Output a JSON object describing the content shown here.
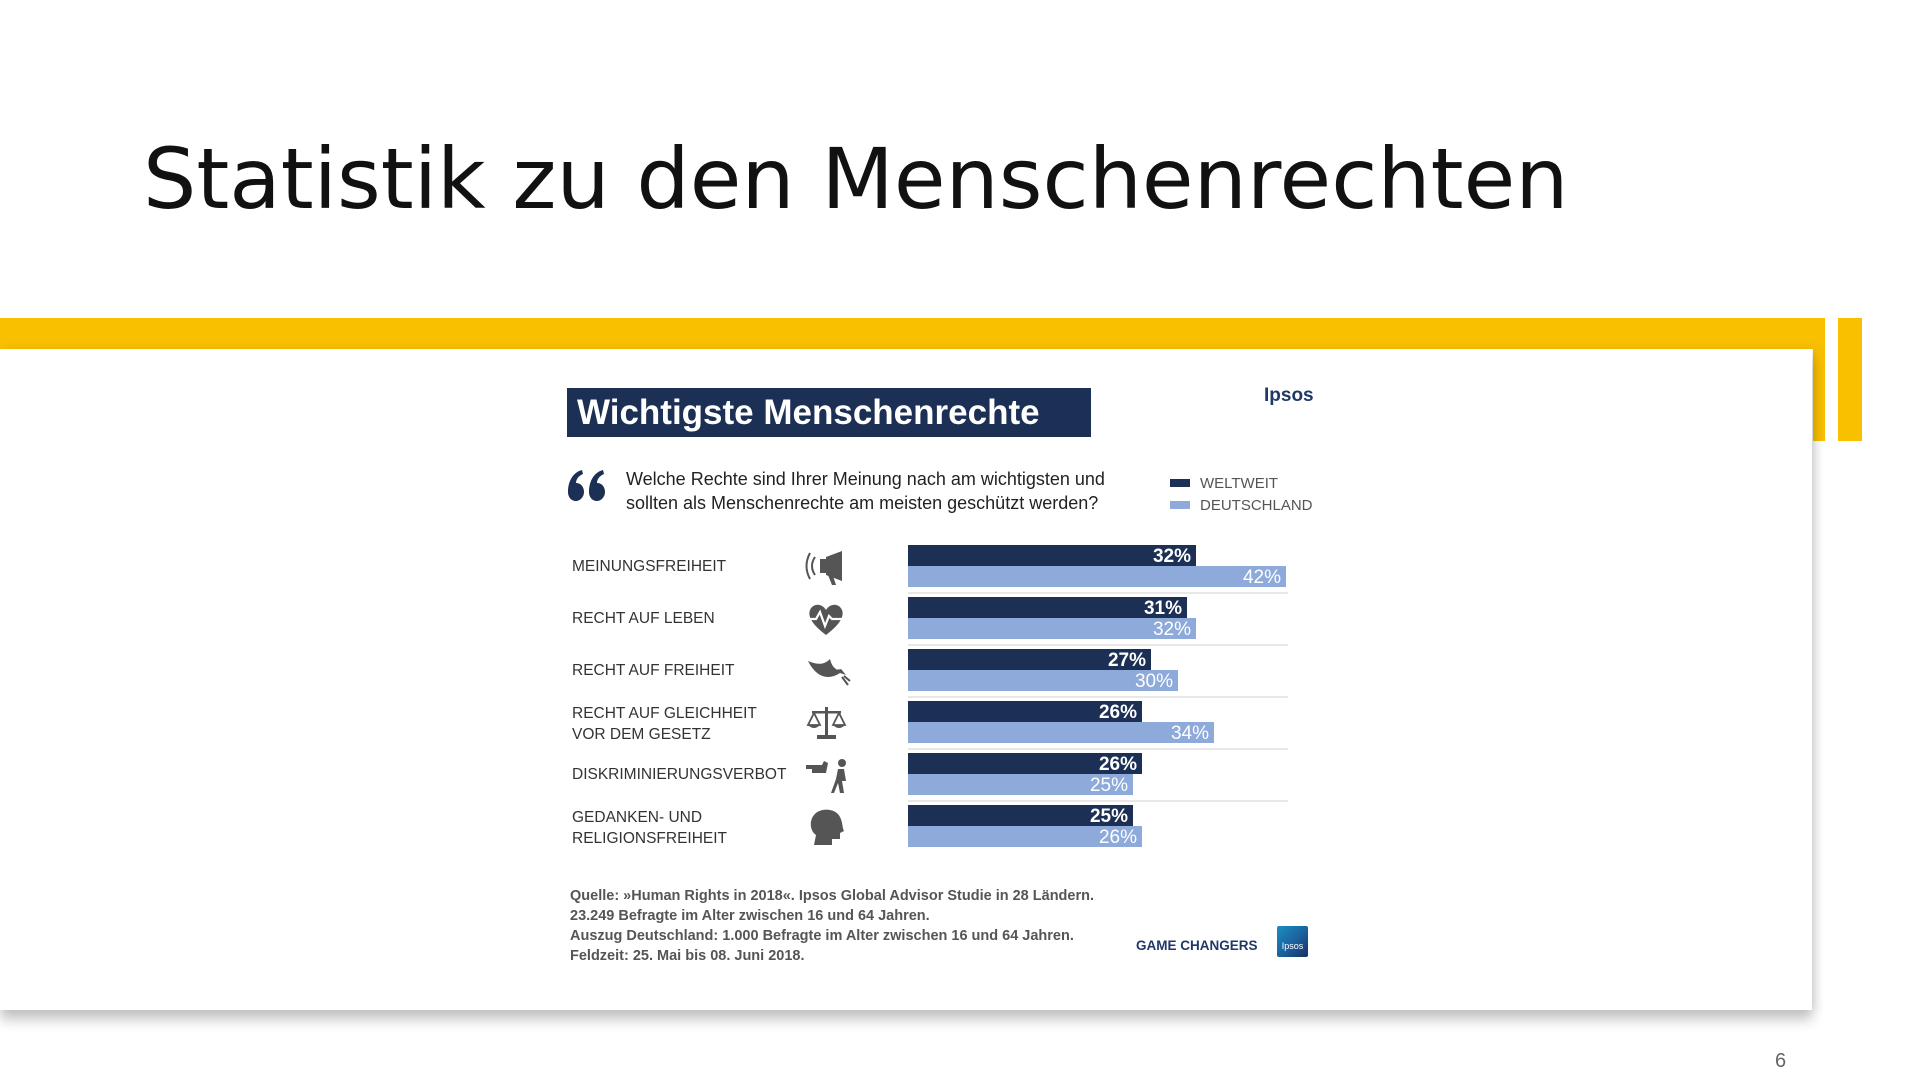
{
  "slide": {
    "title": "Statistik zu den Menschenrechten",
    "page_number": "6"
  },
  "colors": {
    "accent": "#f9c000",
    "weltweit": "#1c2f54",
    "deutschland": "#8eaadb",
    "title_box": "#1c2f54"
  },
  "chart_data": {
    "type": "bar",
    "orientation": "horizontal",
    "title": "Wichtigste Menschenrechte",
    "brand": "Ipsos",
    "question": "Welche Rechte sind Ihrer Meinung nach am wichtigsten und sollten als Menschenrechte am meisten geschützt werden?",
    "legend_position": "top-right",
    "grid": false,
    "xlim": [
      0,
      50
    ],
    "categories": [
      {
        "label_lines": [
          "MEINUNGSFREIHEIT"
        ],
        "icon": "megaphone-icon"
      },
      {
        "label_lines": [
          "RECHT AUF LEBEN"
        ],
        "icon": "heartbeat-icon"
      },
      {
        "label_lines": [
          "RECHT AUF FREIHEIT"
        ],
        "icon": "dove-icon"
      },
      {
        "label_lines": [
          "RECHT AUF GLEICHHEIT",
          "VOR DEM GESETZ"
        ],
        "icon": "scales-icon"
      },
      {
        "label_lines": [
          "DISKRIMINIERUNGSVERBOT"
        ],
        "icon": "pointing-person-icon"
      },
      {
        "label_lines": [
          "GEDANKEN- UND",
          "RELIGIONSFREIHEIT"
        ],
        "icon": "head-icon"
      }
    ],
    "series": [
      {
        "name": "WELTWEIT",
        "values": [
          32,
          31,
          27,
          26,
          26,
          25
        ],
        "labels": [
          "32%",
          "31%",
          "27%",
          "26%",
          "26%",
          "25%"
        ]
      },
      {
        "name": "DEUTSCHLAND",
        "values": [
          42,
          32,
          30,
          34,
          25,
          26
        ],
        "labels": [
          "42%",
          "32%",
          "30%",
          "34%",
          "25%",
          "26%"
        ]
      }
    ],
    "source_lines": [
      "Quelle: »Human Rights in 2018«. Ipsos Global Advisor Studie in 28 Ländern.",
      "23.249 Befragte im Alter zwischen 16 und 64 Jahren.",
      "Auszug Deutschland:  1.000 Befragte im Alter zwischen 16 und 64 Jahren.",
      "Feldzeit: 25. Mai bis 08. Juni 2018."
    ],
    "footer_brand": "GAME CHANGERS",
    "logo_text": "Ipsos"
  }
}
